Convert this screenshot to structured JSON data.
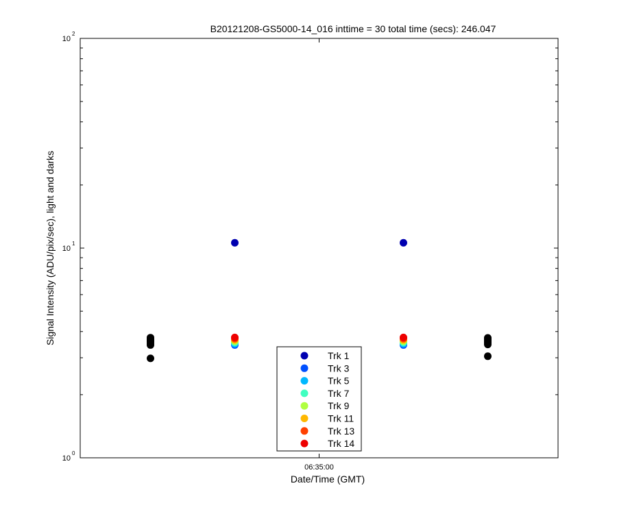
{
  "chart_data": {
    "type": "scatter",
    "title": "B20121208-GS5000-14_016 inttime = 30 total time (secs): 246.047",
    "xlabel": "Date/Time (GMT)",
    "ylabel": "Signal Intensity (ADU/pix/sec), light and darks",
    "x_ticks": [
      "06:35:00"
    ],
    "x_times": [
      "06:32:00",
      "06:33:30",
      "06:35:00",
      "06:36:30",
      "06:38:00"
    ],
    "y_scale": "log",
    "ylim": [
      1,
      100
    ],
    "y_ticks": [
      {
        "base": "10",
        "exp": "0"
      },
      {
        "base": "10",
        "exp": "1"
      },
      {
        "base": "10",
        "exp": "2"
      }
    ],
    "grid": false,
    "legend_position": "bottom-center",
    "series": [
      {
        "name": "Trk 1",
        "color": "#0000b0",
        "x": [
          "06:33:30",
          "06:36:30"
        ],
        "values": [
          10.6,
          10.6
        ]
      },
      {
        "name": "Trk 3",
        "color": "#0050ff",
        "x": [
          "06:33:30",
          "06:36:30"
        ],
        "values": [
          3.45,
          3.45
        ]
      },
      {
        "name": "Trk 5",
        "color": "#00b8ff",
        "x": [
          "06:33:30",
          "06:36:30"
        ],
        "values": [
          3.5,
          3.5
        ]
      },
      {
        "name": "Trk 7",
        "color": "#40ffc0",
        "x": [
          "06:33:30",
          "06:36:30"
        ],
        "values": [
          3.55,
          3.55
        ]
      },
      {
        "name": "Trk 9",
        "color": "#b0ff40",
        "x": [
          "06:33:30",
          "06:36:30"
        ],
        "values": [
          3.6,
          3.6
        ]
      },
      {
        "name": "Trk 11",
        "color": "#ffb800",
        "x": [
          "06:33:30",
          "06:36:30"
        ],
        "values": [
          3.65,
          3.65
        ]
      },
      {
        "name": "Trk 13",
        "color": "#ff4000",
        "x": [
          "06:33:30",
          "06:36:30"
        ],
        "values": [
          3.7,
          3.7
        ]
      },
      {
        "name": "Trk 14",
        "color": "#ee0000",
        "x": [
          "06:33:30",
          "06:36:30"
        ],
        "values": [
          3.75,
          3.75
        ]
      }
    ],
    "darks": {
      "color": "#000000",
      "x": [
        "06:32:00",
        "06:32:00",
        "06:32:00",
        "06:32:00",
        "06:32:00",
        "06:32:00",
        "06:32:00",
        "06:38:00",
        "06:38:00",
        "06:38:00",
        "06:38:00",
        "06:38:00",
        "06:38:00",
        "06:38:00"
      ],
      "values": [
        2.98,
        3.45,
        3.52,
        3.58,
        3.63,
        3.68,
        3.74,
        3.05,
        3.47,
        3.53,
        3.58,
        3.63,
        3.68,
        3.73
      ]
    }
  }
}
